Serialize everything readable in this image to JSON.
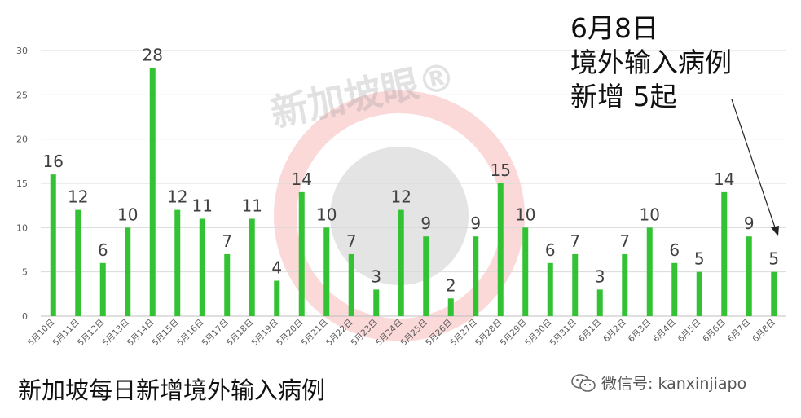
{
  "watermark": {
    "text": "新加坡眼®"
  },
  "annotation": {
    "line1": "6月8日",
    "line2": "境外输入病例",
    "line3": "新增 5起"
  },
  "caption": {
    "text": "新加坡每日新增境外输入病例"
  },
  "wechat": {
    "label": "微信号: kanxinjiapo",
    "icon": "wechat-icon"
  },
  "colors": {
    "bar": "#33c233",
    "grid": "#d9d9d9",
    "axis": "#bfbfbf",
    "label": "#404040"
  },
  "chart_data": {
    "type": "bar",
    "title": "",
    "xlabel": "",
    "ylabel": "",
    "ylim": [
      0,
      30
    ],
    "yticks": [
      0,
      5,
      10,
      15,
      20,
      25,
      30
    ],
    "grid": true,
    "categories": [
      "5月10日",
      "5月11日",
      "5月12日",
      "5月13日",
      "5月14日",
      "5月15日",
      "5月16日",
      "5月17日",
      "5月18日",
      "5月19日",
      "5月20日",
      "5月21日",
      "5月22日",
      "5月23日",
      "5月24日",
      "5月25日",
      "5月26日",
      "5月27日",
      "5月28日",
      "5月29日",
      "5月30日",
      "5月31日",
      "6月1日",
      "6月2日",
      "6月3日",
      "6月4日",
      "6月5日",
      "6月6日",
      "6月7日",
      "6月8日"
    ],
    "values": [
      16,
      12,
      6,
      10,
      28,
      12,
      11,
      7,
      11,
      4,
      14,
      10,
      7,
      3,
      12,
      9,
      2,
      9,
      15,
      10,
      6,
      7,
      3,
      7,
      10,
      6,
      5,
      14,
      9,
      5
    ]
  }
}
